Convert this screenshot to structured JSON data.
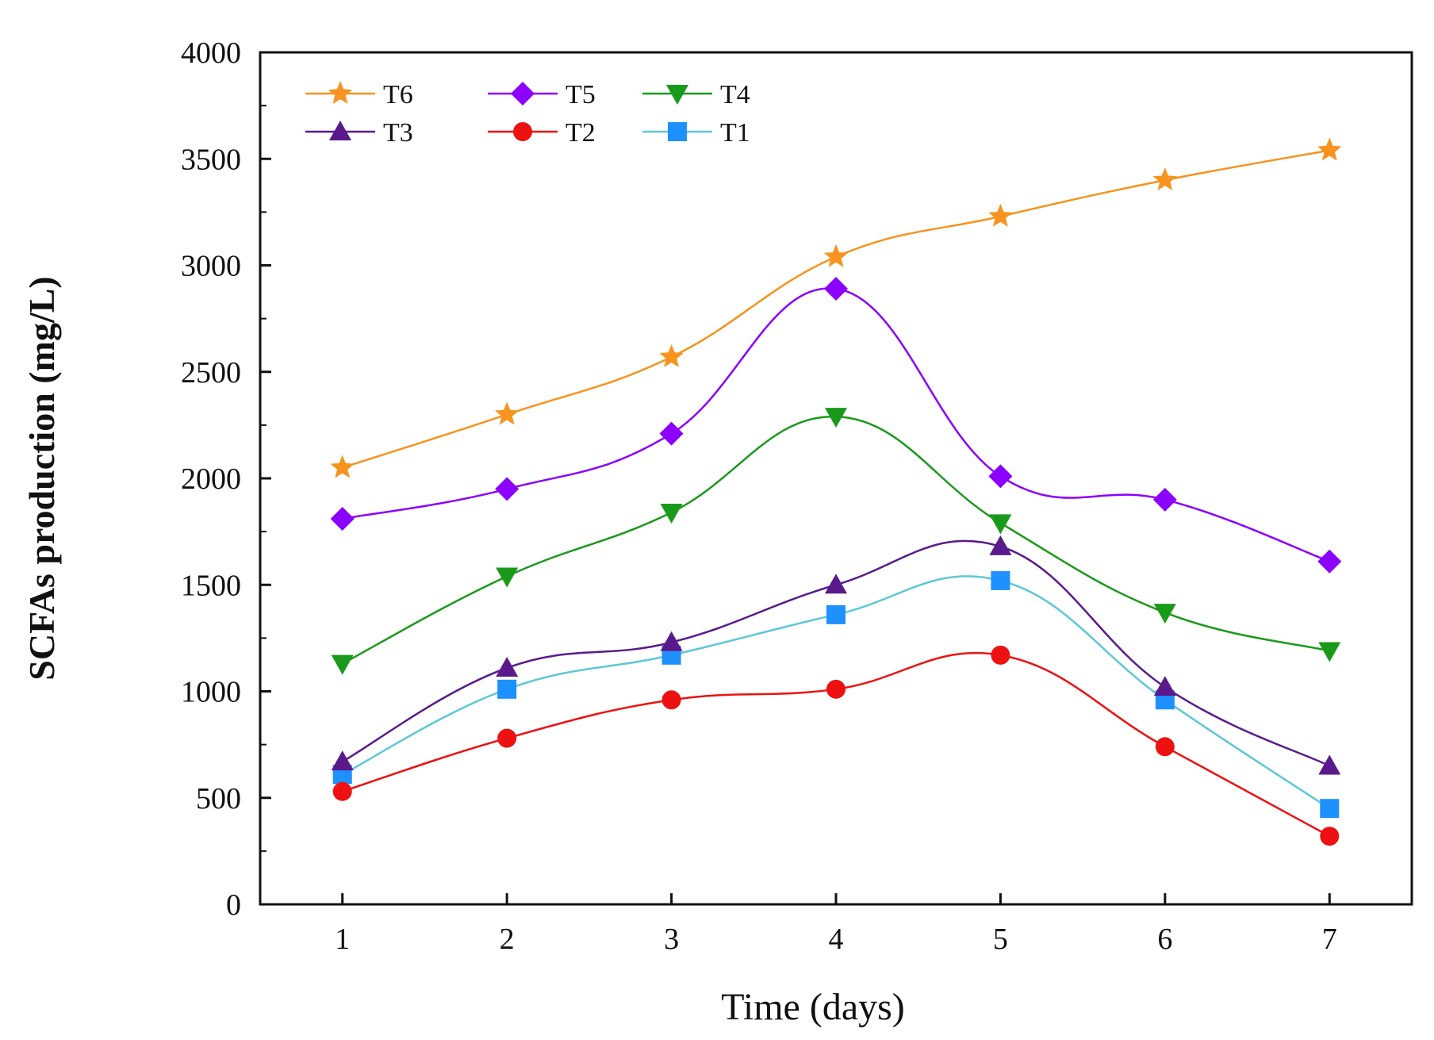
{
  "chart_data": {
    "type": "line",
    "title": "",
    "xlabel": "Time (days)",
    "ylabel": "SCFAs production (mg/L)",
    "x": [
      1,
      2,
      3,
      4,
      5,
      6,
      7
    ],
    "xlim": [
      0.5,
      7.5
    ],
    "ylim": [
      0,
      4000
    ],
    "yticks": [
      0,
      500,
      1000,
      1500,
      2000,
      2500,
      3000,
      3500,
      4000
    ],
    "grid": false,
    "legend_position": "top-left",
    "series": [
      {
        "name": "T6",
        "marker": "star",
        "color": "#f7931e",
        "values": [
          2050,
          2300,
          2570,
          3040,
          3230,
          3400,
          3540
        ]
      },
      {
        "name": "T5",
        "marker": "diamond",
        "color": "#8b00ff",
        "values": [
          1810,
          1950,
          2210,
          2890,
          2010,
          1900,
          1610
        ]
      },
      {
        "name": "T4",
        "marker": "triangle-down",
        "color": "#1a9a1a",
        "values": [
          1130,
          1540,
          1840,
          2290,
          1790,
          1370,
          1190
        ]
      },
      {
        "name": "T3",
        "marker": "triangle-up",
        "color": "#5a1a8c",
        "values": [
          670,
          1110,
          1230,
          1500,
          1680,
          1020,
          650
        ]
      },
      {
        "name": "T2",
        "marker": "circle",
        "color": "#ee1111",
        "values": [
          530,
          780,
          960,
          1010,
          1170,
          740,
          320
        ]
      },
      {
        "name": "T1",
        "marker": "square",
        "color": "#1e90ff",
        "line_color": "#5cc8d6",
        "values": [
          610,
          1010,
          1170,
          1360,
          1520,
          960,
          450
        ]
      }
    ]
  }
}
